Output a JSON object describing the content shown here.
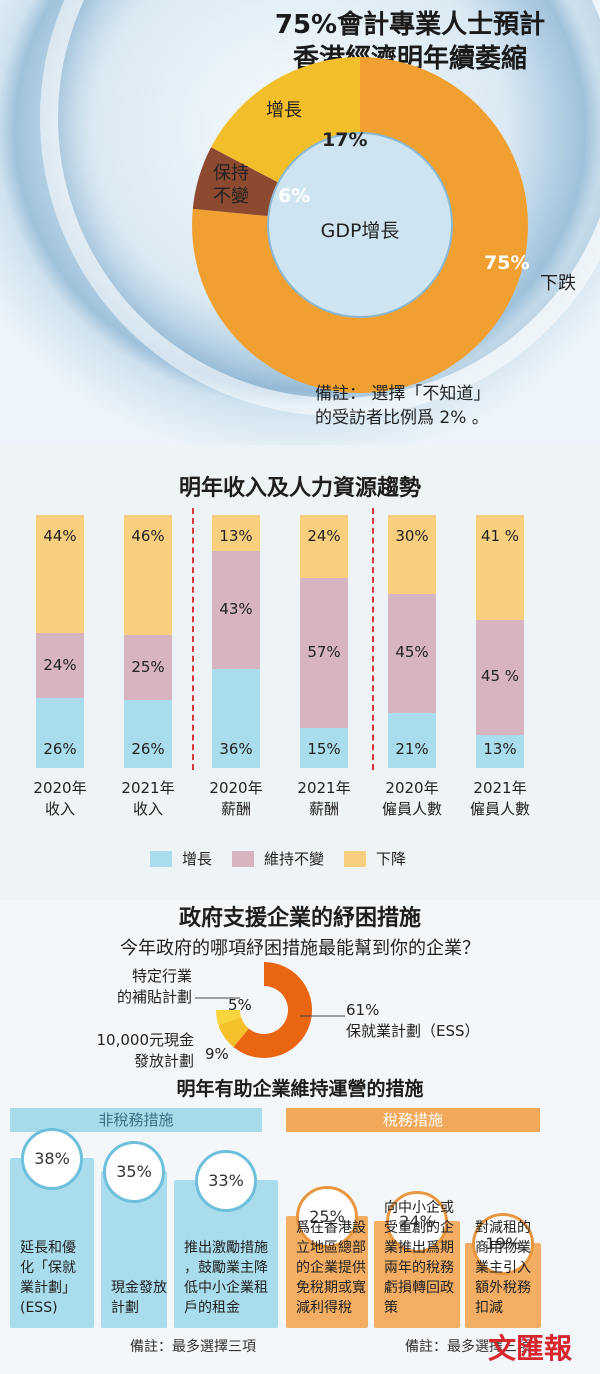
{
  "pie1": {
    "title_line1": "75%會計專業人士預計",
    "title_line2": "香港經濟明年續萎縮",
    "center": "GDP增長",
    "labels": {
      "grow": "增長",
      "keep1": "保持",
      "keep2": "不變",
      "fall": "下跌"
    },
    "pcts": {
      "grow": "17%",
      "keep": "6%",
      "fall": "75%"
    },
    "note_line1": "備註： 選擇「不知道」",
    "note_line2": "的受訪者比例爲 2% 。"
  },
  "chart_data": [
    {
      "type": "pie",
      "title": "75%會計專業人士預計香港經濟明年續萎縮",
      "labels": [
        "增長",
        "保持不變",
        "下跌"
      ],
      "values": [
        17,
        6,
        75
      ],
      "colors": [
        "#f2bf2a",
        "#8e4a30",
        "#f0a030"
      ]
    },
    {
      "type": "bar",
      "title": "明年收入及人力資源趨勢",
      "categories": [
        "2020年 收入",
        "2021年 收入",
        "2020年 薪酬",
        "2021年 薪酬",
        "2020年 僱員人數",
        "2021年 僱員人數"
      ],
      "series": [
        {
          "name": "增長",
          "values": [
            26,
            26,
            36,
            15,
            21,
            13
          ],
          "labels": [
            "26%",
            "26%",
            "36%",
            "15%",
            "21%",
            "13%"
          ]
        },
        {
          "name": "維持不變",
          "values": [
            24,
            25,
            43,
            57,
            45,
            45
          ],
          "labels": [
            "24%",
            "25%",
            "43%",
            "57%",
            "45%",
            "45 %"
          ]
        },
        {
          "name": "下降",
          "values": [
            44,
            46,
            13,
            24,
            30,
            41
          ],
          "labels": [
            "44%",
            "46%",
            "13%",
            "24%",
            "30%",
            "41 %"
          ]
        }
      ],
      "stacked": true
    },
    {
      "type": "pie",
      "title": "政府支援企業的紓困措施",
      "subtitle": "今年政府的哪項紓困措施最能幫到你的企業？",
      "labels": [
        "保就業計劃（ESS）",
        "10,000元現金發放計劃",
        "特定行業的補貼計劃"
      ],
      "values": [
        61,
        9,
        5
      ]
    },
    {
      "type": "bar",
      "title": "明年有助企業維持運營的措施",
      "categories": [
        "延長和優化「保就業計劃」(ESS)",
        "現金發放計劃",
        "推出激勵措施，鼓勵業主降低中小企業租戶的租金",
        "爲在香港設立地區總部的企業提供免稅期或寬減利得稅",
        "向中小企或受重創的企業推出爲期兩年的稅務虧損轉回政策",
        "對減租的商用物業業主引入額外稅務扣減"
      ],
      "values": [
        38,
        35,
        33,
        25,
        24,
        19
      ]
    }
  ],
  "bars": {
    "title": "明年收入及人力資源趨勢",
    "cat_line1": [
      "2020年",
      "2021年",
      "2020年",
      "2021年",
      "2020年",
      "2021年"
    ],
    "cat_line2": [
      "收入",
      "收入",
      "薪酬",
      "薪酬",
      "僱員人數",
      "僱員人數"
    ],
    "legend": [
      "增長",
      "維持不變",
      "下降"
    ],
    "colors": [
      "#a9dcec",
      "#d7b4c0",
      "#f7cf7f"
    ]
  },
  "donut": {
    "title": "政府支援企業的紓困措施",
    "question": "今年政府的哪項紓困措施最能幫到你的企業？",
    "lbl_a1": "特定行業",
    "lbl_a2": "的補貼計劃",
    "pct_a": "5%",
    "lbl_b1": "10,000元現金",
    "lbl_b2": "發放計劃",
    "pct_b": "9%",
    "pct_c": "61%",
    "lbl_c": "保就業計劃（ESS）"
  },
  "measures": {
    "title": "明年有助企業維持運營的措施",
    "hdr_left": "非稅務措施",
    "hdr_right": "稅務措施",
    "pcts": [
      "38%",
      "35%",
      "33%",
      "25%",
      "24%",
      "19%"
    ],
    "texts": [
      [
        "延長和優",
        "化「保就",
        "業計劃」",
        "(ESS)"
      ],
      [
        "現金發放",
        "計劃"
      ],
      [
        "推出激勵措施",
        "，鼓勵業主降",
        "低中小企業租",
        "戶的租金"
      ],
      [
        "爲在香港設",
        "立地區總部",
        "的企業提供",
        "免稅期或寬",
        "減利得稅"
      ],
      [
        "向中小企或",
        "受重創的企",
        "業推出爲期",
        "兩年的稅務",
        "虧損轉回政",
        "策"
      ],
      [
        "對減租的",
        "商用物業",
        "業主引入",
        "額外稅務",
        "扣減"
      ]
    ],
    "foot_left": "備註：最多選擇三項",
    "foot_right": "備註：最多選擇三項"
  },
  "logo": "文匯報"
}
